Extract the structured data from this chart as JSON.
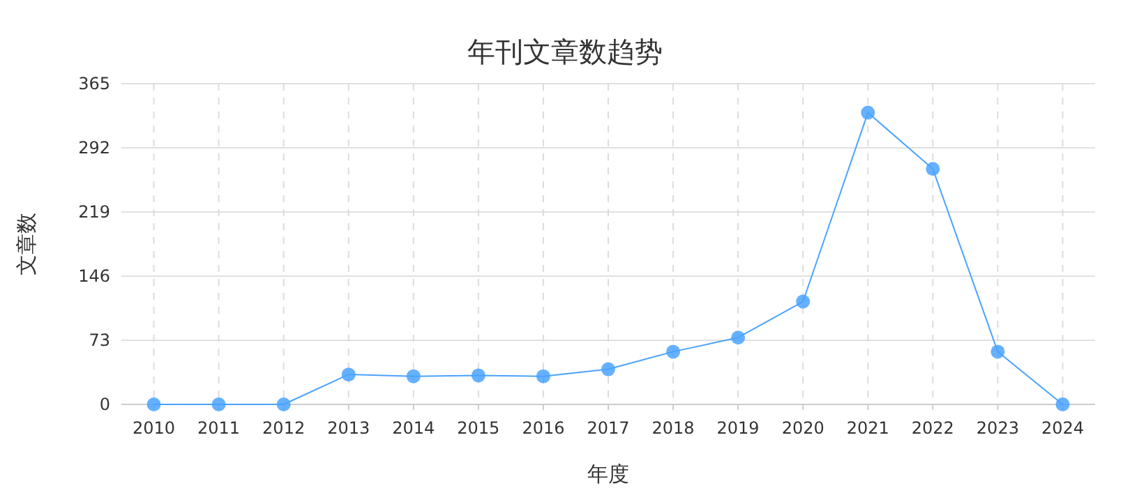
{
  "chart_data": {
    "type": "line",
    "title": "年刊文章数趋势",
    "xlabel": "年度",
    "ylabel": "文章数",
    "categories": [
      "2010",
      "2011",
      "2012",
      "2013",
      "2014",
      "2015",
      "2016",
      "2017",
      "2018",
      "2019",
      "2020",
      "2021",
      "2022",
      "2023",
      "2024"
    ],
    "series": [
      {
        "color": "#4aa3ff",
        "values": [
          0,
          0,
          0,
          34,
          32,
          33,
          32,
          40,
          60,
          76,
          117,
          332,
          268,
          60,
          0
        ]
      }
    ],
    "ylim": [
      0,
      365
    ],
    "yticks": [
      0,
      73,
      146,
      219,
      292,
      365
    ],
    "grid": true,
    "marker": "circle",
    "line_style": "solid"
  }
}
